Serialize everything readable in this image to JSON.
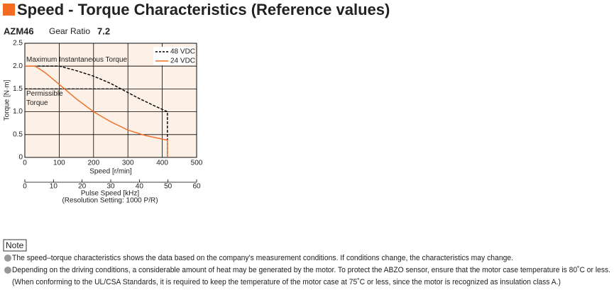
{
  "header": {
    "title": "Speed - Torque Characteristics (Reference values)"
  },
  "subheader": {
    "model": "AZM46",
    "ratio_label": "Gear Ratio",
    "ratio": "7.2"
  },
  "chart_data": {
    "type": "line",
    "xlabel": "Speed [r/min]",
    "ylabel": "Torque [N·m]",
    "xlim": [
      0,
      500
    ],
    "xticks": [
      0,
      100,
      200,
      300,
      400,
      500
    ],
    "ylim": [
      0,
      2.5
    ],
    "yticks": [
      0,
      0.5,
      {
        "value": 1,
        "label": "1.0"
      },
      1.5,
      {
        "value": 2,
        "label": "2.0"
      },
      2.5
    ],
    "x2label": "Pulse Speed [kHz]",
    "x2note": "(Resolution Setting: 1000 P/R)",
    "x2lim": [
      0,
      60
    ],
    "x2ticks": [
      0,
      10,
      20,
      30,
      40,
      50,
      60
    ],
    "grid": true,
    "legend": "top-right",
    "annotations": [
      {
        "text": [
          "Maximum Instantaneous Torque"
        ],
        "value": 2
      },
      {
        "text": [
          "Permissible",
          "Torque"
        ],
        "value": 1.5,
        "xend": 280
      }
    ],
    "series": [
      {
        "name": "48 VDC",
        "color": "#000000",
        "dash": true,
        "x": [
          0,
          100,
          150,
          200,
          250,
          280,
          330,
          380,
          415,
          415
        ],
        "values": [
          2.0,
          2.0,
          1.9,
          1.78,
          1.62,
          1.5,
          1.3,
          1.12,
          1.0,
          0
        ]
      },
      {
        "name": "24 VDC",
        "color": "#f26b21",
        "dash": false,
        "x": [
          0,
          30,
          60,
          100,
          150,
          200,
          250,
          300,
          350,
          400,
          415,
          415
        ],
        "values": [
          2.0,
          2.0,
          1.85,
          1.6,
          1.28,
          1.0,
          0.78,
          0.6,
          0.48,
          0.4,
          0.38,
          0
        ]
      }
    ]
  },
  "notes": {
    "title": "Note",
    "items": [
      "The speed–torque characteristics shows the data based on the company's measurement conditions. If conditions change, the characteristics may change.",
      "Depending on the driving conditions, a considerable amount of heat may be generated by the motor. To protect the ABZO sensor, ensure that the motor case temperature is 80˚C or less.",
      "(When conforming to the UL/CSA Standards, it is required to keep the temperature of the motor case at 75˚C or less, since the motor is recognized as insulation class A.)"
    ]
  }
}
